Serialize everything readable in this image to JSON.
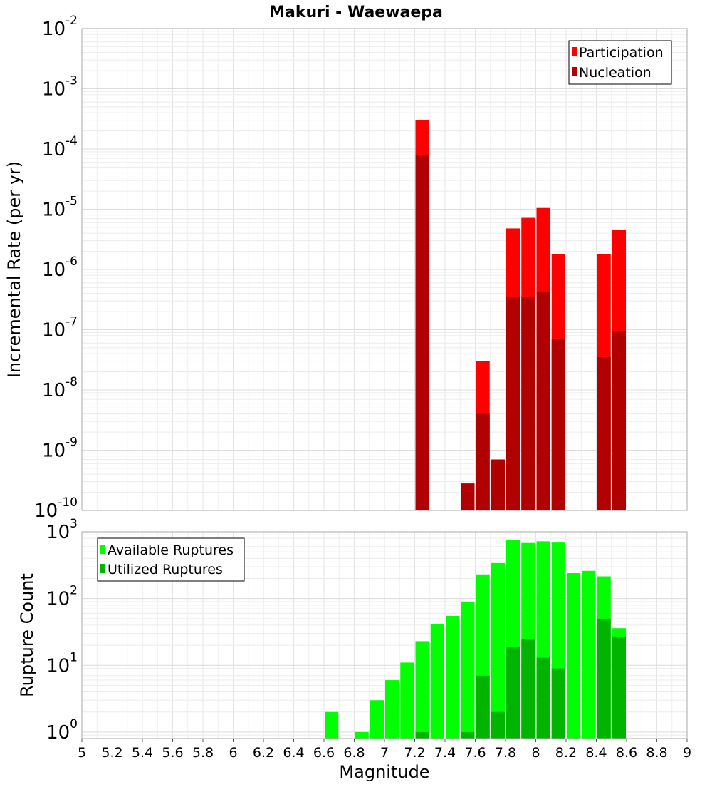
{
  "chart_data": [
    {
      "type": "bar",
      "title": "Makuri - Waewaepa",
      "xlabel": "",
      "ylabel": "Incremental Rate (per yr)",
      "y_scale": "log",
      "xlim": [
        5,
        9
      ],
      "ylim": [
        1e-10,
        0.01
      ],
      "grid": true,
      "legend_position": "top-right",
      "bar_width": 0.1,
      "y_ticks": [
        {
          "base": "10",
          "exp": "-10",
          "value": 1e-10
        },
        {
          "base": "10",
          "exp": "-9",
          "value": 1e-09
        },
        {
          "base": "10",
          "exp": "-8",
          "value": 1e-08
        },
        {
          "base": "10",
          "exp": "-7",
          "value": 1e-07
        },
        {
          "base": "10",
          "exp": "-6",
          "value": 1e-06
        },
        {
          "base": "10",
          "exp": "-5",
          "value": 1e-05
        },
        {
          "base": "10",
          "exp": "-4",
          "value": 0.0001
        },
        {
          "base": "10",
          "exp": "-3",
          "value": 0.001
        },
        {
          "base": "10",
          "exp": "-2",
          "value": 0.01
        }
      ],
      "series": [
        {
          "name": "Participation",
          "color": "#ff0000",
          "x": [
            7.25,
            7.55,
            7.65,
            7.75,
            7.85,
            7.95,
            8.05,
            8.15,
            8.45,
            8.55
          ],
          "values": [
            0.0003,
            2.8e-10,
            3e-08,
            7e-10,
            4.8e-06,
            7.2e-06,
            1.05e-05,
            1.8e-06,
            1.8e-06,
            4.6e-06
          ]
        },
        {
          "name": "Nucleation",
          "color": "#b00000",
          "x": [
            7.25,
            7.55,
            7.65,
            7.75,
            7.85,
            7.95,
            8.05,
            8.15,
            8.45,
            8.55
          ],
          "values": [
            8e-05,
            2.8e-10,
            4e-09,
            7e-10,
            3.5e-07,
            3.5e-07,
            4.2e-07,
            7e-08,
            3.5e-08,
            9.5e-08
          ]
        }
      ]
    },
    {
      "type": "bar",
      "title": "",
      "xlabel": "Magnitude",
      "ylabel": "Rupture Count",
      "y_scale": "log",
      "xlim": [
        5,
        9
      ],
      "ylim": [
        0.8,
        1000
      ],
      "grid": true,
      "legend_position": "top-left",
      "bar_width": 0.1,
      "x_ticks": [
        "5",
        "5.2",
        "5.4",
        "5.6",
        "5.8",
        "6",
        "6.2",
        "6.4",
        "6.6",
        "6.8",
        "7",
        "7.2",
        "7.4",
        "7.6",
        "7.8",
        "8",
        "8.2",
        "8.4",
        "8.6",
        "8.8",
        "9"
      ],
      "y_ticks": [
        {
          "base": "10",
          "exp": "0",
          "value": 1
        },
        {
          "base": "10",
          "exp": "1",
          "value": 10
        },
        {
          "base": "10",
          "exp": "2",
          "value": 100
        },
        {
          "base": "10",
          "exp": "3",
          "value": 1000
        }
      ],
      "series": [
        {
          "name": "Available Ruptures",
          "color": "#00ff00",
          "x": [
            6.65,
            6.85,
            6.95,
            7.05,
            7.15,
            7.25,
            7.35,
            7.45,
            7.55,
            7.65,
            7.75,
            7.85,
            7.95,
            8.05,
            8.15,
            8.25,
            8.35,
            8.45,
            8.55
          ],
          "values": [
            2,
            1,
            3,
            6,
            11,
            23,
            42,
            55,
            90,
            230,
            340,
            760,
            680,
            720,
            690,
            240,
            260,
            215,
            36
          ]
        },
        {
          "name": "Utilized Ruptures",
          "color": "#00b400",
          "x": [
            7.25,
            7.55,
            7.65,
            7.75,
            7.85,
            7.95,
            8.05,
            8.15,
            8.45,
            8.55
          ],
          "values": [
            1,
            1,
            7,
            2,
            19,
            25,
            13,
            9,
            50,
            27
          ]
        }
      ]
    }
  ]
}
